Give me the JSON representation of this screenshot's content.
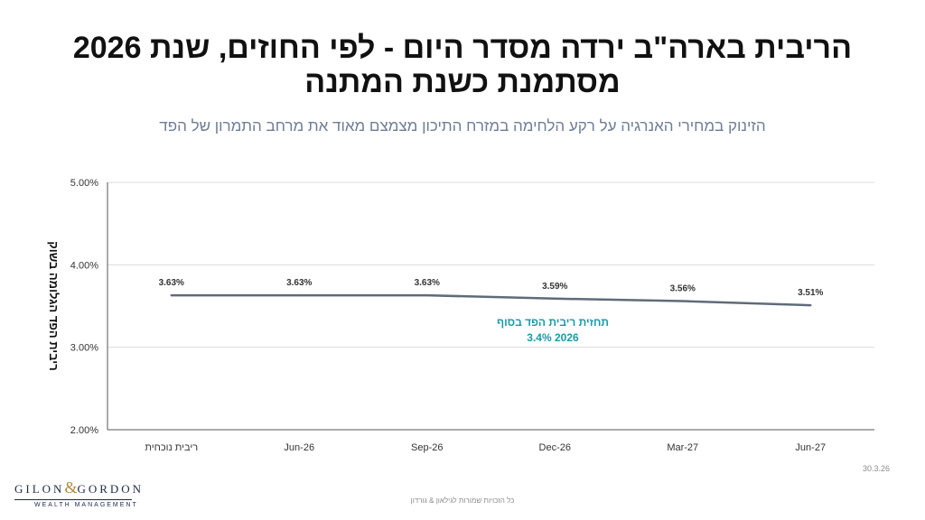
{
  "page": {
    "title_line1": "הריבית בארה\"ב ירדה מסדר היום - לפי החוזים, שנת 2026",
    "title_line2": "מסתמנת כשנת המתנה",
    "subtitle": "הזינוק במחירי האנרגיה על רקע הלחימה במזרח התיכון מצמצם מאוד את מרחב התמרון של הפד",
    "date_stamp": "30.3.26",
    "footer_note": "כל הזכויות שמורות לגילאון & גורדון"
  },
  "logo": {
    "part1": "GILON",
    "amp": "&",
    "part2": "GORDON",
    "sub": "WEALTH MANAGEMENT"
  },
  "chart_data": {
    "type": "line",
    "title": "",
    "ylabel": "ריבית הפד הגלומה בשוק",
    "xlabel": "",
    "categories": [
      "ריבית נוכחית",
      "Jun-26",
      "Sep-26",
      "Dec-26",
      "Mar-27",
      "Jun-27"
    ],
    "series": [
      {
        "values": [
          3.63,
          3.63,
          3.63,
          3.59,
          3.56,
          3.51
        ]
      }
    ],
    "data_labels": [
      "3.63%",
      "3.63%",
      "3.63%",
      "3.59%",
      "3.56%",
      "3.51%"
    ],
    "ylim": [
      2.0,
      5.0
    ],
    "yticks": [
      2.0,
      3.0,
      4.0,
      5.0
    ],
    "ytick_labels": [
      "2.00%",
      "3.00%",
      "4.00%",
      "5.00%"
    ],
    "grid": true,
    "line_color": "#5f6b7a",
    "annotation": {
      "line1": "תחזית ריבית הפד בסוף",
      "line2": "3.4% 2026",
      "color": "#1a9aa8"
    }
  }
}
